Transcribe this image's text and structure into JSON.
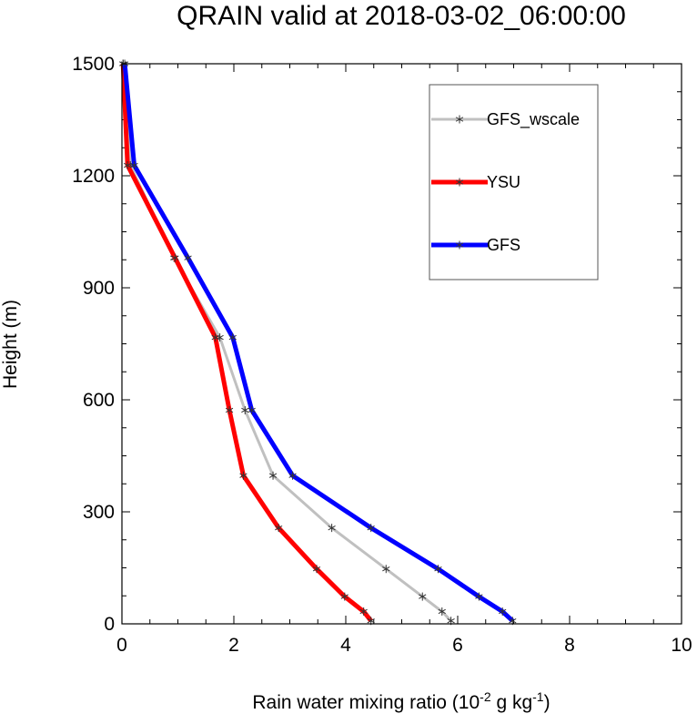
{
  "chart_data": {
    "type": "line",
    "title": "QRAIN valid at 2018-03-02_06:00:00",
    "xlabel": {
      "prefix": "Rain water mixing ratio (10",
      "exp1": "-2",
      "middle": " g kg",
      "exp2": "-1",
      "suffix": ")"
    },
    "ylabel": "Height (m)",
    "xlim": [
      0,
      10
    ],
    "ylim": [
      0,
      1500
    ],
    "x_ticks": [
      0,
      2,
      4,
      6,
      8,
      10
    ],
    "x_tick_labels": [
      "0",
      "2",
      "4",
      "6",
      "8",
      "10"
    ],
    "y_ticks": [
      0,
      300,
      600,
      900,
      1200,
      1500
    ],
    "y_tick_labels": [
      "0",
      "300",
      "600",
      "900",
      "1200",
      "1500"
    ],
    "legend_position": "top-right",
    "series": [
      {
        "name": "GFS_wscale",
        "color": "#c0c0c0",
        "marker": "asterisk",
        "points": [
          [
            5.88,
            8
          ],
          [
            5.72,
            33
          ],
          [
            5.37,
            73
          ],
          [
            4.72,
            147
          ],
          [
            3.75,
            257
          ],
          [
            2.7,
            397
          ],
          [
            2.2,
            572
          ],
          [
            1.75,
            767
          ],
          [
            0.93,
            980
          ],
          [
            0.15,
            1228
          ],
          [
            0.02,
            1500
          ]
        ]
      },
      {
        "name": "YSU",
        "color": "#ff0000",
        "marker": "asterisk",
        "points": [
          [
            4.45,
            8
          ],
          [
            4.32,
            33
          ],
          [
            3.98,
            73
          ],
          [
            3.48,
            147
          ],
          [
            2.8,
            257
          ],
          [
            2.17,
            397
          ],
          [
            1.92,
            572
          ],
          [
            1.67,
            767
          ],
          [
            0.95,
            980
          ],
          [
            0.1,
            1228
          ],
          [
            0.02,
            1500
          ]
        ]
      },
      {
        "name": "GFS",
        "color": "#0000ff",
        "marker": "asterisk",
        "points": [
          [
            6.98,
            8
          ],
          [
            6.8,
            33
          ],
          [
            6.38,
            73
          ],
          [
            5.65,
            147
          ],
          [
            4.45,
            257
          ],
          [
            3.05,
            397
          ],
          [
            2.32,
            572
          ],
          [
            1.98,
            767
          ],
          [
            1.18,
            980
          ],
          [
            0.22,
            1228
          ],
          [
            0.05,
            1500
          ]
        ]
      }
    ]
  }
}
